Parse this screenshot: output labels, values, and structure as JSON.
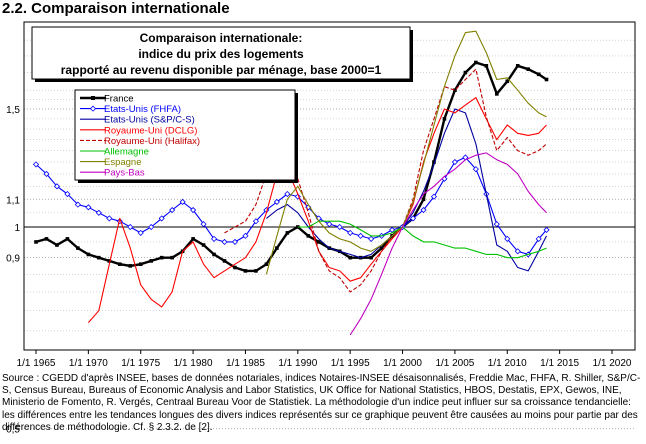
{
  "heading": "2.2. Comparaison internationale",
  "caption": "Source : CGEDD d'après INSEE, bases de données notariales, indices Notaires-INSEE désaisonnalisés, Freddie Mac, FHFA, R. Shiller, S&P/C-S, Census Bureau, Bureaus of Economic Analysis and Labor Statistics, UK Office for National Statistics, HBOS, Destatis, EPX, Gewos, INE, Ministerio de Fomento, R. Vergés, Centraal Bureau Voor de Statistiek.   La méthodologie d'un indice peut influer sur sa croissance tendancielle: les différences entre les tendances longues des divers indices représentés sur ce graphique peuvent être causées au moins pour partie par des différences de méthodologie. Cf. § 2.3.2.  de [2].",
  "colors": {
    "France": "#000000",
    "Etats-Unis (FHFA)": "#0000ff",
    "Etats-Unis (S&P/C-S)": "#0000a0",
    "Royaume-Uni (DCLG)": "#ff0000",
    "Royaume-Uni (Halifax)": "#c00000",
    "Allemagne": "#00c000",
    "Espagne": "#808000",
    "Pays-Bas": "#c000c0"
  },
  "chart_data": {
    "type": "line",
    "title": "Comparaison internationale:\nindice du prix des logements\nrapporté au revenu disponible par ménage, base 2000=1",
    "scale": "log",
    "ylim": [
      0.5,
      2.0
    ],
    "yticks": [
      "0,5",
      "0,9",
      "1",
      "1,1",
      "1,5"
    ],
    "ytick_values": [
      0.5,
      0.9,
      1.0,
      1.1,
      1.5
    ],
    "xlim": [
      1965,
      2020
    ],
    "xticks": [
      "1/1 1965",
      "1/1 1970",
      "1/1 1975",
      "1/1 1980",
      "1/1 1985",
      "1/1 1990",
      "1/1 1995",
      "1/1 2000",
      "1/1 2005",
      "1/1 2010",
      "1/1 2015",
      "1/1 2020"
    ],
    "xtick_values": [
      1965,
      1970,
      1975,
      1980,
      1985,
      1990,
      1995,
      2000,
      2005,
      2010,
      2015,
      2020
    ],
    "legend_position": "top-left",
    "series": [
      {
        "name": "France",
        "style": "solid-thick-markers",
        "points": [
          [
            1965,
            0.95
          ],
          [
            1966,
            0.96
          ],
          [
            1967,
            0.94
          ],
          [
            1968,
            0.96
          ],
          [
            1969,
            0.93
          ],
          [
            1970,
            0.91
          ],
          [
            1971,
            0.9
          ],
          [
            1972,
            0.89
          ],
          [
            1973,
            0.88
          ],
          [
            1974,
            0.875
          ],
          [
            1975,
            0.88
          ],
          [
            1976,
            0.89
          ],
          [
            1977,
            0.9
          ],
          [
            1978,
            0.9
          ],
          [
            1979,
            0.92
          ],
          [
            1980,
            0.96
          ],
          [
            1981,
            0.94
          ],
          [
            1982,
            0.91
          ],
          [
            1983,
            0.89
          ],
          [
            1984,
            0.87
          ],
          [
            1985,
            0.86
          ],
          [
            1986,
            0.86
          ],
          [
            1987,
            0.88
          ],
          [
            1988,
            0.93
          ],
          [
            1989,
            0.98
          ],
          [
            1990,
            1.0
          ],
          [
            1991,
            0.97
          ],
          [
            1992,
            0.95
          ],
          [
            1993,
            0.93
          ],
          [
            1994,
            0.92
          ],
          [
            1995,
            0.9
          ],
          [
            1996,
            0.9
          ],
          [
            1997,
            0.9
          ],
          [
            1998,
            0.93
          ],
          [
            1999,
            0.97
          ],
          [
            2000,
            1.0
          ],
          [
            2001,
            1.03
          ],
          [
            2002,
            1.1
          ],
          [
            2003,
            1.25
          ],
          [
            2004,
            1.45
          ],
          [
            2005,
            1.6
          ],
          [
            2006,
            1.7
          ],
          [
            2007,
            1.76
          ],
          [
            2008,
            1.74
          ],
          [
            2009,
            1.58
          ],
          [
            2010,
            1.65
          ],
          [
            2011,
            1.74
          ],
          [
            2012,
            1.72
          ],
          [
            2013,
            1.69
          ],
          [
            2013.75,
            1.66
          ]
        ]
      },
      {
        "name": "Etats-Unis (FHFA)",
        "style": "solid-markers",
        "points": [
          [
            1965,
            1.24
          ],
          [
            1966,
            1.2
          ],
          [
            1967,
            1.15
          ],
          [
            1968,
            1.12
          ],
          [
            1969,
            1.08
          ],
          [
            1970,
            1.07
          ],
          [
            1971,
            1.05
          ],
          [
            1972,
            1.03
          ],
          [
            1973,
            1.02
          ],
          [
            1974,
            1.0
          ],
          [
            1975,
            0.98
          ],
          [
            1976,
            1.0
          ],
          [
            1977,
            1.03
          ],
          [
            1978,
            1.06
          ],
          [
            1979,
            1.09
          ],
          [
            1980,
            1.06
          ],
          [
            1981,
            1.01
          ],
          [
            1982,
            0.96
          ],
          [
            1983,
            0.95
          ],
          [
            1984,
            0.95
          ],
          [
            1985,
            0.97
          ],
          [
            1986,
            1.02
          ],
          [
            1987,
            1.06
          ],
          [
            1988,
            1.09
          ],
          [
            1989,
            1.12
          ],
          [
            1990,
            1.11
          ],
          [
            1991,
            1.07
          ],
          [
            1992,
            1.03
          ],
          [
            1993,
            1.01
          ],
          [
            1994,
            1.0
          ],
          [
            1995,
            0.98
          ],
          [
            1996,
            0.97
          ],
          [
            1997,
            0.96
          ],
          [
            1998,
            0.97
          ],
          [
            1999,
            0.99
          ],
          [
            2000,
            1.0
          ],
          [
            2001,
            1.03
          ],
          [
            2002,
            1.06
          ],
          [
            2003,
            1.11
          ],
          [
            2004,
            1.18
          ],
          [
            2005,
            1.25
          ],
          [
            2006,
            1.27
          ],
          [
            2007,
            1.22
          ],
          [
            2008,
            1.12
          ],
          [
            2009,
            1.01
          ],
          [
            2010,
            0.96
          ],
          [
            2011,
            0.92
          ],
          [
            2012,
            0.91
          ],
          [
            2013,
            0.96
          ],
          [
            2013.75,
            0.99
          ]
        ]
      },
      {
        "name": "Etats-Unis (S&P/C-S)",
        "style": "solid",
        "points": [
          [
            1987,
            1.03
          ],
          [
            1988,
            1.06
          ],
          [
            1989,
            1.08
          ],
          [
            1990,
            1.05
          ],
          [
            1991,
            1.0
          ],
          [
            1992,
            0.96
          ],
          [
            1993,
            0.93
          ],
          [
            1994,
            0.92
          ],
          [
            1995,
            0.91
          ],
          [
            1996,
            0.9
          ],
          [
            1997,
            0.91
          ],
          [
            1998,
            0.94
          ],
          [
            1999,
            0.97
          ],
          [
            2000,
            1.0
          ],
          [
            2001,
            1.05
          ],
          [
            2002,
            1.13
          ],
          [
            2003,
            1.24
          ],
          [
            2004,
            1.38
          ],
          [
            2005,
            1.5
          ],
          [
            2006,
            1.48
          ],
          [
            2007,
            1.33
          ],
          [
            2008,
            1.12
          ],
          [
            2009,
            0.94
          ],
          [
            2010,
            0.92
          ],
          [
            2011,
            0.87
          ],
          [
            2012,
            0.86
          ],
          [
            2013,
            0.92
          ],
          [
            2013.75,
            0.97
          ]
        ]
      },
      {
        "name": "Royaume-Uni (DCLG)",
        "style": "solid",
        "points": [
          [
            1970,
            0.72
          ],
          [
            1971,
            0.75
          ],
          [
            1972,
            0.88
          ],
          [
            1973,
            1.03
          ],
          [
            1974,
            0.93
          ],
          [
            1975,
            0.82
          ],
          [
            1976,
            0.78
          ],
          [
            1977,
            0.76
          ],
          [
            1978,
            0.8
          ],
          [
            1979,
            0.92
          ],
          [
            1980,
            0.95
          ],
          [
            1981,
            0.88
          ],
          [
            1982,
            0.84
          ],
          [
            1983,
            0.86
          ],
          [
            1984,
            0.88
          ],
          [
            1985,
            0.9
          ],
          [
            1986,
            0.95
          ],
          [
            1987,
            1.05
          ],
          [
            1988,
            1.2
          ],
          [
            1989,
            1.22
          ],
          [
            1990,
            1.12
          ],
          [
            1991,
            1.02
          ],
          [
            1992,
            0.92
          ],
          [
            1993,
            0.87
          ],
          [
            1994,
            0.86
          ],
          [
            1995,
            0.83
          ],
          [
            1996,
            0.84
          ],
          [
            1997,
            0.88
          ],
          [
            1998,
            0.92
          ],
          [
            1999,
            0.96
          ],
          [
            2000,
            1.0
          ],
          [
            2001,
            1.08
          ],
          [
            2002,
            1.25
          ],
          [
            2003,
            1.38
          ],
          [
            2004,
            1.5
          ],
          [
            2005,
            1.48
          ],
          [
            2006,
            1.52
          ],
          [
            2007,
            1.56
          ],
          [
            2008,
            1.45
          ],
          [
            2009,
            1.35
          ],
          [
            2010,
            1.42
          ],
          [
            2011,
            1.38
          ],
          [
            2012,
            1.37
          ],
          [
            2013,
            1.38
          ],
          [
            2013.75,
            1.42
          ]
        ]
      },
      {
        "name": "Royaume-Uni (Halifax)",
        "style": "dashed",
        "points": [
          [
            1983,
            0.98
          ],
          [
            1984,
            1.0
          ],
          [
            1985,
            1.02
          ],
          [
            1986,
            1.08
          ],
          [
            1987,
            1.2
          ],
          [
            1988,
            1.45
          ],
          [
            1988.5,
            1.52
          ],
          [
            1989,
            1.4
          ],
          [
            1990,
            1.18
          ],
          [
            1991,
            1.05
          ],
          [
            1992,
            0.92
          ],
          [
            1993,
            0.86
          ],
          [
            1994,
            0.84
          ],
          [
            1995,
            0.8
          ],
          [
            1996,
            0.82
          ],
          [
            1997,
            0.86
          ],
          [
            1998,
            0.92
          ],
          [
            1999,
            0.97
          ],
          [
            2000,
            1.0
          ],
          [
            2001,
            1.1
          ],
          [
            2002,
            1.3
          ],
          [
            2003,
            1.45
          ],
          [
            2004,
            1.62
          ],
          [
            2005,
            1.6
          ],
          [
            2006,
            1.66
          ],
          [
            2007,
            1.72
          ],
          [
            2008,
            1.46
          ],
          [
            2009,
            1.3
          ],
          [
            2010,
            1.36
          ],
          [
            2011,
            1.3
          ],
          [
            2012,
            1.28
          ],
          [
            2013,
            1.3
          ],
          [
            2013.75,
            1.33
          ]
        ]
      },
      {
        "name": "Allemagne",
        "style": "solid",
        "points": [
          [
            1990,
            1.0
          ],
          [
            1991,
            1.0
          ],
          [
            1992,
            1.02
          ],
          [
            1993,
            1.02
          ],
          [
            1994,
            1.02
          ],
          [
            1995,
            1.01
          ],
          [
            1996,
            0.99
          ],
          [
            1997,
            0.97
          ],
          [
            1998,
            0.97
          ],
          [
            1999,
            0.98
          ],
          [
            2000,
            1.0
          ],
          [
            2001,
            0.97
          ],
          [
            2002,
            0.95
          ],
          [
            2003,
            0.95
          ],
          [
            2004,
            0.94
          ],
          [
            2005,
            0.93
          ],
          [
            2006,
            0.93
          ],
          [
            2007,
            0.92
          ],
          [
            2008,
            0.91
          ],
          [
            2009,
            0.91
          ],
          [
            2010,
            0.9
          ],
          [
            2011,
            0.9
          ],
          [
            2012,
            0.91
          ],
          [
            2013,
            0.92
          ],
          [
            2013.75,
            0.93
          ]
        ]
      },
      {
        "name": "Espagne",
        "style": "solid",
        "points": [
          [
            1987,
            0.85
          ],
          [
            1988,
            0.97
          ],
          [
            1989,
            1.1
          ],
          [
            1990,
            1.15
          ],
          [
            1991,
            1.08
          ],
          [
            1992,
            1.02
          ],
          [
            1993,
            0.98
          ],
          [
            1994,
            0.96
          ],
          [
            1995,
            0.95
          ],
          [
            1996,
            0.93
          ],
          [
            1997,
            0.92
          ],
          [
            1998,
            0.94
          ],
          [
            1999,
            0.97
          ],
          [
            2000,
            1.0
          ],
          [
            2001,
            1.09
          ],
          [
            2002,
            1.24
          ],
          [
            2003,
            1.42
          ],
          [
            2004,
            1.62
          ],
          [
            2005,
            1.8
          ],
          [
            2006,
            1.95
          ],
          [
            2007,
            1.96
          ],
          [
            2008,
            1.82
          ],
          [
            2009,
            1.66
          ],
          [
            2010,
            1.67
          ],
          [
            2011,
            1.6
          ],
          [
            2012,
            1.53
          ],
          [
            2013,
            1.48
          ],
          [
            2013.75,
            1.46
          ]
        ]
      },
      {
        "name": "Pays-Bas",
        "style": "solid",
        "points": [
          [
            1995,
            0.69
          ],
          [
            1996,
            0.73
          ],
          [
            1997,
            0.78
          ],
          [
            1998,
            0.85
          ],
          [
            1999,
            0.93
          ],
          [
            2000,
            1.0
          ],
          [
            2001,
            1.06
          ],
          [
            2002,
            1.12
          ],
          [
            2003,
            1.15
          ],
          [
            2004,
            1.19
          ],
          [
            2005,
            1.22
          ],
          [
            2006,
            1.26
          ],
          [
            2007,
            1.28
          ],
          [
            2008,
            1.29
          ],
          [
            2009,
            1.26
          ],
          [
            2010,
            1.24
          ],
          [
            2011,
            1.2
          ],
          [
            2012,
            1.13
          ],
          [
            2013,
            1.08
          ],
          [
            2013.75,
            1.05
          ]
        ]
      }
    ]
  }
}
